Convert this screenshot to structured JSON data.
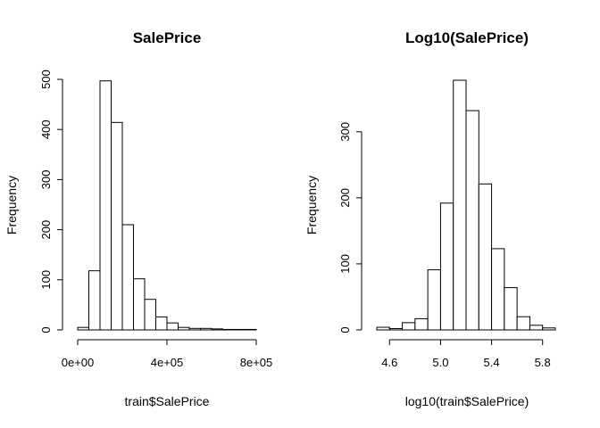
{
  "chart_data": [
    {
      "type": "bar",
      "title": "SalePrice",
      "xlabel": "train$SalePrice",
      "ylabel": "Frequency",
      "bin_edges": [
        0,
        50000,
        100000,
        150000,
        200000,
        250000,
        300000,
        350000,
        400000,
        450000,
        500000,
        550000,
        600000,
        650000,
        700000,
        750000,
        800000
      ],
      "values": [
        5,
        118,
        497,
        414,
        210,
        102,
        61,
        26,
        14,
        5,
        3,
        3,
        2,
        1,
        1,
        1
      ],
      "xlim": [
        0,
        800000
      ],
      "ylim": [
        0,
        500
      ],
      "x_ticks": [
        0,
        400000,
        800000
      ],
      "x_tick_labels": [
        "0e+00",
        "4e+05",
        "8e+05"
      ],
      "y_ticks": [
        0,
        100,
        200,
        300,
        400,
        500
      ],
      "y_tick_labels": [
        "0",
        "100",
        "200",
        "300",
        "400",
        "500"
      ]
    },
    {
      "type": "bar",
      "title": "Log10(SalePrice)",
      "xlabel": "log10(train$SalePrice)",
      "ylabel": "Frequency",
      "bin_edges": [
        4.5,
        4.6,
        4.7,
        4.8,
        4.9,
        5.0,
        5.1,
        5.2,
        5.3,
        5.4,
        5.5,
        5.6,
        5.7,
        5.8,
        5.9
      ],
      "values": [
        4,
        2,
        11,
        17,
        91,
        192,
        378,
        332,
        221,
        123,
        64,
        20,
        7,
        3
      ],
      "xlim": [
        4.5,
        5.9
      ],
      "ylim": [
        0,
        378
      ],
      "x_ticks": [
        4.6,
        5.0,
        5.4,
        5.8
      ],
      "x_tick_labels": [
        "4.6",
        "5.0",
        "5.4",
        "5.8"
      ],
      "y_ticks": [
        0,
        100,
        200,
        300
      ],
      "y_tick_labels": [
        "0",
        "100",
        "200",
        "300"
      ]
    }
  ]
}
